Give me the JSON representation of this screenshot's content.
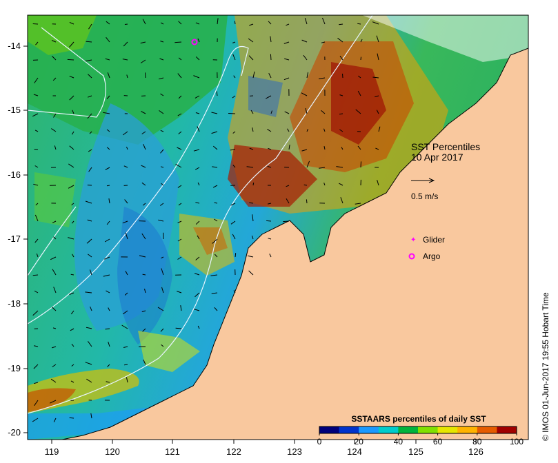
{
  "map": {
    "title": "SST Percentiles",
    "date": "10 Apr 2017",
    "vector_scale_label": "0.5 m/s",
    "markers": [
      {
        "label": "Glider",
        "symbol": "glider-marker",
        "color": "#ff00ff"
      },
      {
        "label": "Argo",
        "symbol": "argo-marker",
        "color": "#ff00ff"
      }
    ],
    "x_ticks": [
      "119",
      "120",
      "121",
      "122",
      "123",
      "124",
      "125",
      "126"
    ],
    "y_ticks": [
      "-14",
      "-15",
      "-16",
      "-17",
      "-18",
      "-19",
      "-20"
    ],
    "land_color": "#f9c89e",
    "contour_color": "#e8f4ff"
  },
  "legend": {
    "title": "SSTAARS percentiles of daily SST",
    "tick_labels": [
      "0",
      "20",
      "40",
      "60",
      "80",
      "100"
    ],
    "colors": [
      "#00007a",
      "#0033cc",
      "#1a99ff",
      "#00cccc",
      "#00b33c",
      "#80e000",
      "#e6e600",
      "#ffb300",
      "#e65c00",
      "#a00000"
    ]
  },
  "credit": "© IMOS 01-Jun-2017 19:55 Hobart Time"
}
